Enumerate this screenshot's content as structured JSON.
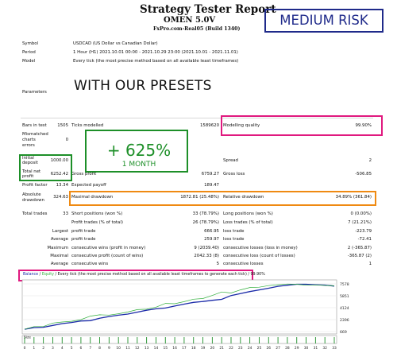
{
  "header": {
    "title": "Strategy Tester Report",
    "subtitle": "OMEN 5.0V",
    "build": "FxPro.com-Real05 (Build 1340)",
    "risk_badge": "MEDIUM RISK"
  },
  "info": {
    "symbol_label": "Symbol",
    "symbol_value": "USDCAD (US Dollar vs Canadian Dollar)",
    "period_label": "Period",
    "period_value": "1 Hour (H1) 2021.10.01 00:00 - 2021.10.29 23:00 (2021.10.01 - 2021.11.01)",
    "model_label": "Model",
    "model_value": "Every tick (the most precise method based on all available least timeframes)",
    "parameters_label": "Parameters",
    "presets_banner": "WITH OUR PRESETS"
  },
  "overlay": {
    "gain": "+ 625%",
    "duration": "1 MONTH"
  },
  "stats": {
    "bars_label": "Bars in test",
    "bars_value": "1505",
    "ticks_label": "Ticks modelled",
    "ticks_value": "1589620",
    "quality_label": "Modelling quality",
    "quality_value": "99.90%",
    "mismatch_label_1": "Mismatched",
    "mismatch_label_2": "charts",
    "mismatch_label_3": "errors",
    "mismatch_value": "0",
    "deposit_label_1": "Initial",
    "deposit_label_2": "deposit",
    "deposit_value": "1000.00",
    "spread_label": "Spread",
    "spread_value": "2",
    "netprofit_label_1": "Total net",
    "netprofit_label_2": "profit",
    "netprofit_value": "6252.42",
    "grossprofit_label": "Gross profit",
    "grossprofit_value": "6759.27",
    "grossloss_label": "Gross loss",
    "grossloss_value": "-506.85",
    "pf_label": "Profit factor",
    "pf_value": "13.34",
    "payoff_label": "Expected payoff",
    "payoff_value": "189.47",
    "absdd_label_1": "Absolute",
    "absdd_label_2": "drawdown",
    "absdd_value": "324.63",
    "maxdd_label": "Maximal drawdown",
    "maxdd_value": "1872.81 (25.48%)",
    "reldd_label": "Relative drawdown",
    "reldd_value": "34.89% (361.84)",
    "trades_label": "Total trades",
    "trades_value": "33",
    "short_label": "Short positions (won %)",
    "short_value": "33 (78.79%)",
    "long_label": "Long positions (won %)",
    "long_value": "0 (0.00%)",
    "ptrades_label": "Profit trades (% of total)",
    "ptrades_value": "26 (78.79%)",
    "ltrades_label": "Loss trades (% of total)",
    "ltrades_value": "7 (21.21%)",
    "largest_label": "Largest",
    "lprofit_label": "profit trade",
    "lprofit_value": "666.95",
    "lloss_label": "loss trade",
    "lloss_value": "-223.79",
    "average_label": "Average",
    "aprofit_label": "profit trade",
    "aprofit_value": "259.97",
    "aloss_label": "loss trade",
    "aloss_value": "-72.41",
    "maximum_label": "Maximum",
    "mcw_label": "consecutive wins (profit in money)",
    "mcw_value": "9 (2039.40)",
    "mcl_label": "consecutive losses (loss in money)",
    "mcl_value": "2 (-365.87)",
    "maximal_label": "Maximal",
    "mcp_label": "consecutive profit (count of wins)",
    "mcp_value": "2042.33 (8)",
    "mcls_label": "consecutive loss (count of losses)",
    "mcls_value": "-365.87 (2)",
    "avgc_label": "Average",
    "avgcw_label": "consecutive wins",
    "avgcw_value": "5",
    "avgcl_label": "consecutive losses",
    "avgcl_value": "1"
  },
  "chart_legend": {
    "balance": "Balance",
    "sep": " / ",
    "equity": "Equity",
    "rest": " / Every tick (the most precise method based on all available least timeframes to generate each tick) / 99.90%"
  },
  "colors": {
    "balance": "#1a2aa8",
    "equity": "#2fae3a",
    "size": "#1d8f28",
    "risk": "#1f2a8a",
    "pink": "#e0197f",
    "orange": "#ef8a12",
    "green": "#1d8f28"
  },
  "chart_data": {
    "type": "line",
    "y_ticks": [
      "7578",
      "5851",
      "4124",
      "2396",
      "669"
    ],
    "x_ticks": [
      "0",
      "1",
      "2",
      "3",
      "4",
      "5",
      "6",
      "7",
      "8",
      "9",
      "10",
      "11",
      "12",
      "13",
      "14",
      "15",
      "16",
      "17",
      "18",
      "19",
      "20",
      "21",
      "22",
      "23",
      "24",
      "25",
      "26",
      "27",
      "28",
      "29",
      "30",
      "31",
      "32",
      "33"
    ],
    "size_label": "Size",
    "ylim": [
      669,
      7578
    ],
    "xlim": [
      0,
      33
    ],
    "series": [
      {
        "name": "Balance",
        "color": "#1a2aa8",
        "x": [
          0,
          1,
          2,
          3,
          4,
          5,
          6,
          7,
          8,
          9,
          10,
          11,
          12,
          13,
          14,
          15,
          16,
          17,
          18,
          19,
          20,
          21,
          22,
          23,
          24,
          25,
          26,
          27,
          28,
          29,
          30,
          31,
          32,
          33
        ],
        "values": [
          1000,
          1250,
          1290,
          1560,
          1820,
          1980,
          2200,
          2250,
          2600,
          2850,
          3040,
          3200,
          3480,
          3760,
          3960,
          4080,
          4360,
          4640,
          4900,
          5020,
          5200,
          5330,
          5880,
          6160,
          6460,
          6700,
          6950,
          7220,
          7380,
          7520,
          7520,
          7450,
          7400,
          7250
        ]
      },
      {
        "name": "Equity",
        "color": "#2fae3a",
        "x": [
          0,
          1,
          2,
          3,
          4,
          5,
          6,
          7,
          8,
          9,
          10,
          11,
          12,
          13,
          14,
          15,
          16,
          17,
          18,
          19,
          20,
          21,
          22,
          23,
          24,
          25,
          26,
          27,
          28,
          29,
          30,
          31,
          32,
          33
        ],
        "values": [
          1000,
          1380,
          1400,
          1900,
          2050,
          2150,
          2400,
          2900,
          3100,
          3050,
          3250,
          3500,
          3850,
          3900,
          4200,
          4750,
          4700,
          5000,
          5350,
          5450,
          5900,
          6400,
          6250,
          6700,
          7050,
          7100,
          7320,
          7450,
          7560,
          7520,
          7380,
          7430,
          7350,
          7300
        ]
      }
    ],
    "size_values": [
      1,
      1,
      1,
      1,
      1,
      1,
      1,
      1,
      1,
      1,
      1,
      1,
      1,
      1,
      1,
      1,
      1,
      1,
      1,
      1,
      1,
      1,
      1,
      1,
      1,
      1,
      1,
      1,
      1,
      1,
      1,
      1,
      1,
      1
    ]
  }
}
